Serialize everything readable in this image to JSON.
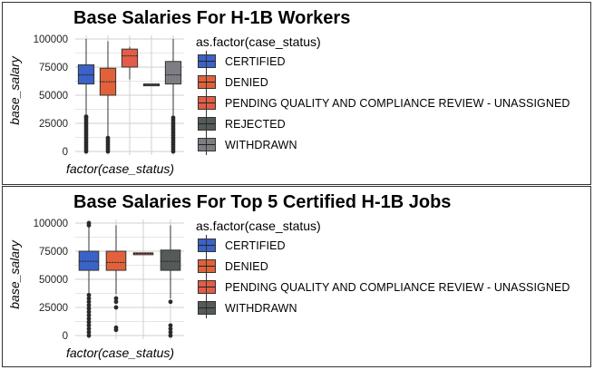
{
  "chart_data": [
    {
      "type": "boxplot",
      "title": "Base Salaries For H-1B Workers",
      "xlabel": "factor(case_status)",
      "ylabel": "base_salary",
      "ylim": [
        0,
        100000
      ],
      "yticks": [
        0,
        25000,
        50000,
        75000,
        100000
      ],
      "legend_title": "as.factor(case_status)",
      "series": [
        {
          "name": "CERTIFIED",
          "color": "#3b62c6",
          "q1": 60000,
          "median": 68000,
          "q3": 77000,
          "whisker_low": 33000,
          "whisker_high": 100000,
          "outliers": [
            0,
            2000,
            4000,
            6000,
            8000,
            10000,
            12000,
            14000,
            16000,
            18000,
            20000,
            22000,
            24000,
            26000,
            28000,
            30000,
            31000
          ]
        },
        {
          "name": "DENIED",
          "color": "#e1623a",
          "q1": 50000,
          "median": 62000,
          "q3": 74000,
          "whisker_low": 13000,
          "whisker_high": 98000,
          "outliers": [
            0,
            2000,
            4000,
            6000,
            8000,
            10000,
            12000
          ]
        },
        {
          "name": "PENDING QUALITY AND COMPLIANCE REVIEW - UNASSIGNED",
          "color": "#e25d48",
          "q1": 75000,
          "median": 85000,
          "q3": 91000,
          "whisker_low": 64000,
          "whisker_high": 93000,
          "outliers": []
        },
        {
          "name": "REJECTED",
          "color": "#555b58",
          "q1": 59000,
          "median": 59500,
          "q3": 60000,
          "whisker_low": 59000,
          "whisker_high": 60000,
          "outliers": []
        },
        {
          "name": "WITHDRAWN",
          "color": "#7d7d84",
          "q1": 60000,
          "median": 68000,
          "q3": 80000,
          "whisker_low": 32000,
          "whisker_high": 100000,
          "outliers": [
            0,
            2000,
            4000,
            6000,
            8000,
            10000,
            12000,
            14000,
            16000,
            18000,
            20000,
            22000,
            24000,
            26000,
            28000,
            30000
          ]
        }
      ]
    },
    {
      "type": "boxplot",
      "title": "Base Salaries For Top 5 Certified H-1B Jobs",
      "xlabel": "factor(case_status)",
      "ylabel": "base_salary",
      "ylim": [
        0,
        100000
      ],
      "yticks": [
        0,
        25000,
        50000,
        75000,
        100000
      ],
      "legend_title": "as.factor(case_status)",
      "series": [
        {
          "name": "CERTIFIED",
          "color": "#3b62c6",
          "q1": 58000,
          "median": 66000,
          "q3": 75000,
          "whisker_low": 38000,
          "whisker_high": 97000,
          "outliers": [
            0,
            3000,
            6000,
            9000,
            12000,
            15000,
            18000,
            21000,
            24000,
            27000,
            30000,
            33000,
            36000,
            98000,
            100000
          ]
        },
        {
          "name": "DENIED",
          "color": "#e1623a",
          "q1": 58000,
          "median": 65000,
          "q3": 75000,
          "whisker_low": 37000,
          "whisker_high": 98000,
          "outliers": [
            5000,
            7000,
            25000,
            30000,
            33000
          ]
        },
        {
          "name": "PENDING QUALITY AND COMPLIANCE REVIEW - UNASSIGNED",
          "color": "#e25d48",
          "q1": 72500,
          "median": 73000,
          "q3": 73500,
          "whisker_low": 72500,
          "whisker_high": 73500,
          "outliers": []
        },
        {
          "name": "WITHDRAWN",
          "color": "#555b58",
          "q1": 58000,
          "median": 66000,
          "q3": 76000,
          "whisker_low": 33000,
          "whisker_high": 98000,
          "outliers": [
            0,
            3000,
            6000,
            9000,
            30000
          ]
        }
      ]
    }
  ]
}
